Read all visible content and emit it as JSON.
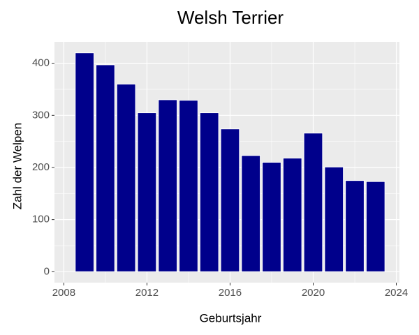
{
  "chart_data": {
    "type": "bar",
    "title": "Welsh Terrier",
    "x_label": "Geburtsjahr",
    "y_label": "Zahl der Welpen",
    "x": [
      2009,
      2010,
      2011,
      2012,
      2013,
      2014,
      2015,
      2016,
      2017,
      2018,
      2019,
      2020,
      2021,
      2022,
      2023
    ],
    "values": [
      420,
      397,
      360,
      305,
      330,
      329,
      305,
      274,
      223,
      210,
      218,
      266,
      201,
      175,
      173
    ],
    "color": "#00008b",
    "xlim": [
      2007.55,
      2024.15
    ],
    "xticks": [
      2008,
      2012,
      2016,
      2020,
      2024
    ],
    "ylim": [
      -21,
      441
    ],
    "yticks": [
      0,
      100,
      200,
      300,
      400
    ],
    "grid": true
  }
}
